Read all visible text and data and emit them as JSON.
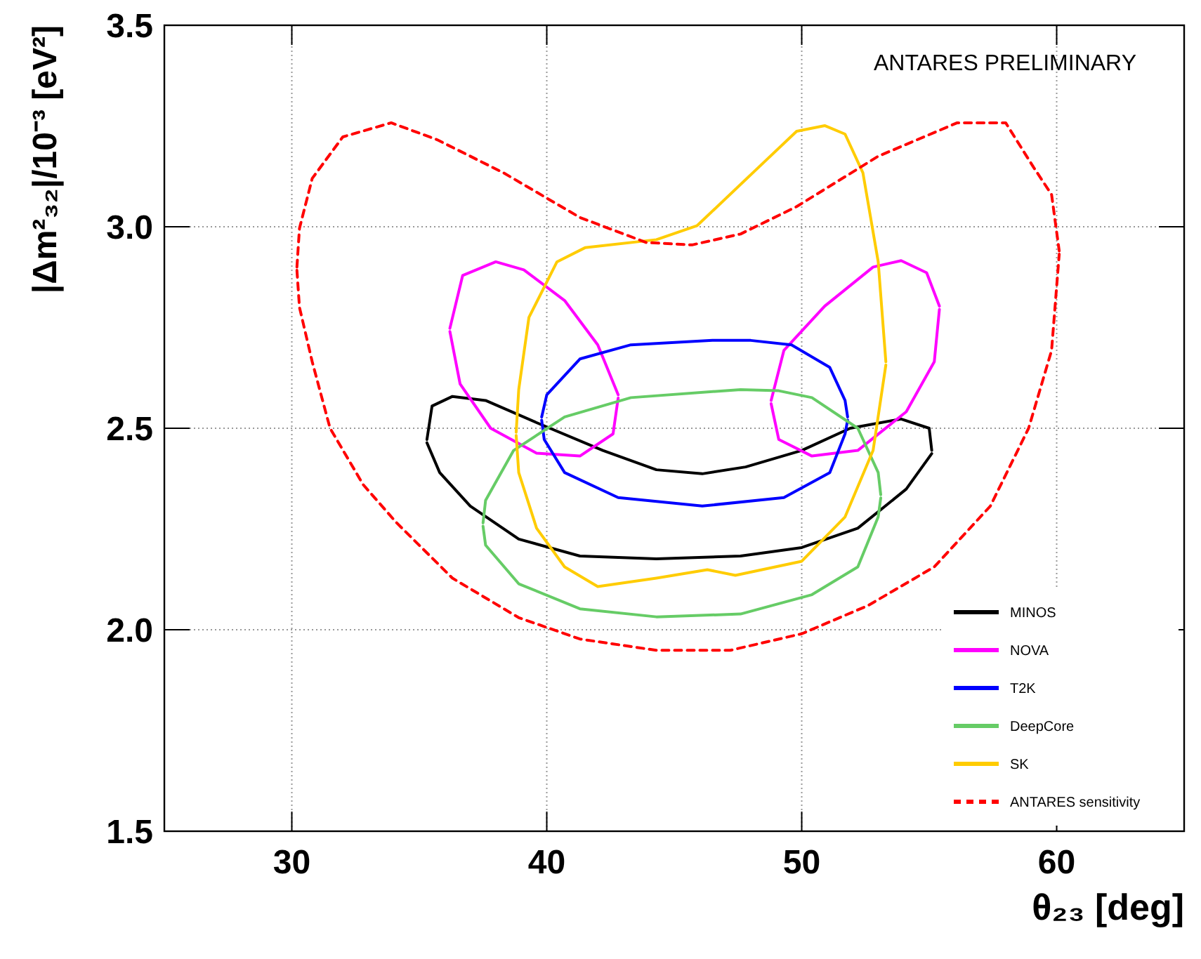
{
  "chart_data": {
    "type": "line",
    "xlabel": "θ₂₃ [deg]",
    "ylabel": "|Δm²₃₂|/10⁻³ [eV²]",
    "annotations": [
      "ANTARES PRELIMINARY"
    ],
    "xlim": [
      25,
      65
    ],
    "xticks": [
      30,
      40,
      50,
      60
    ],
    "ylim": [
      1.5,
      3.5
    ],
    "yticks": [
      1.5,
      {
        "value": 2,
        "label": "2.0"
      },
      2.5,
      {
        "value": 3,
        "label": "3.0"
      },
      3.5
    ],
    "grid": true,
    "legend": "bottom right",
    "series": [
      {
        "name": "MINOS",
        "color": "#000000",
        "line_style": "solid",
        "x": [
          35.3,
          35.5,
          36.3,
          37.6,
          39.6,
          42.2,
          44.3,
          46.1,
          47.8,
          50.0,
          51.9,
          53.9,
          55.0,
          55.1
        ],
        "values": [
          2.472,
          2.555,
          2.579,
          2.569,
          2.514,
          2.445,
          2.397,
          2.387,
          2.404,
          2.445,
          2.5,
          2.523,
          2.5,
          2.445
        ]
      },
      {
        "color": "#000000",
        "line_style": "solid",
        "x": [
          35.3,
          35.8,
          37.0,
          38.9,
          41.3,
          44.3,
          47.6,
          50.0,
          52.2,
          54.1,
          55.1
        ],
        "values": [
          2.464,
          2.39,
          2.307,
          2.225,
          2.183,
          2.176,
          2.183,
          2.204,
          2.252,
          2.349,
          2.437
        ]
      },
      {
        "name": "NOVA",
        "color": "#ff00ff",
        "line_style": "solid",
        "x": [
          36.2,
          36.7,
          38.0,
          39.1,
          40.7,
          42.0,
          42.8
        ],
        "values": [
          2.748,
          2.879,
          2.913,
          2.893,
          2.817,
          2.707,
          2.583
        ]
      },
      {
        "color": "#ff00ff",
        "line_style": "solid",
        "x": [
          36.2,
          36.6,
          37.8,
          39.6,
          41.3,
          42.6,
          42.8
        ],
        "values": [
          2.74,
          2.61,
          2.5,
          2.438,
          2.431,
          2.486,
          2.575
        ]
      },
      {
        "color": "#ff00ff",
        "line_style": "solid",
        "x": [
          48.8,
          49.3,
          50.9,
          52.8,
          53.9,
          54.9,
          55.4
        ],
        "values": [
          2.569,
          2.693,
          2.803,
          2.9,
          2.916,
          2.886,
          2.803
        ]
      },
      {
        "color": "#ff00ff",
        "line_style": "solid",
        "x": [
          48.8,
          49.1,
          50.4,
          52.2,
          54.1,
          55.2,
          55.4
        ],
        "values": [
          2.561,
          2.472,
          2.431,
          2.445,
          2.541,
          2.665,
          2.795
        ]
      },
      {
        "name": "T2K",
        "color": "#0000ff",
        "line_style": "solid",
        "x": [
          39.8,
          40.0,
          41.3,
          43.3,
          46.5,
          48.0,
          49.6,
          51.1,
          51.7,
          51.8
        ],
        "values": [
          2.528,
          2.583,
          2.672,
          2.707,
          2.718,
          2.718,
          2.707,
          2.651,
          2.569,
          2.528
        ]
      },
      {
        "color": "#0000ff",
        "line_style": "solid",
        "x": [
          39.8,
          39.9,
          40.7,
          42.8,
          46.1,
          49.3,
          51.1,
          51.7,
          51.8
        ],
        "values": [
          2.52,
          2.472,
          2.39,
          2.328,
          2.307,
          2.328,
          2.39,
          2.486,
          2.52
        ]
      },
      {
        "name": "DeepCore",
        "color": "#66cc66",
        "line_style": "solid",
        "x": [
          37.5,
          37.6,
          38.7,
          40.7,
          43.3,
          47.6,
          49.1,
          50.4,
          52.2,
          53.0,
          53.1
        ],
        "values": [
          2.265,
          2.321,
          2.445,
          2.528,
          2.576,
          2.596,
          2.593,
          2.576,
          2.5,
          2.39,
          2.335
        ]
      },
      {
        "color": "#66cc66",
        "line_style": "solid",
        "x": [
          37.5,
          37.6,
          38.9,
          41.3,
          44.3,
          47.6,
          50.4,
          52.2,
          53.0,
          53.1
        ],
        "values": [
          2.257,
          2.21,
          2.114,
          2.052,
          2.032,
          2.039,
          2.087,
          2.156,
          2.28,
          2.327
        ]
      },
      {
        "name": "SK",
        "color": "#ffcc00",
        "line_style": "solid",
        "x": [
          38.8,
          38.9,
          39.3,
          40.4,
          41.5,
          44.3,
          45.9,
          48.3,
          49.8,
          50.9,
          51.7,
          52.4,
          53.0,
          53.3
        ],
        "values": [
          2.49,
          2.596,
          2.775,
          2.913,
          2.948,
          2.968,
          3.003,
          3.147,
          3.237,
          3.251,
          3.23,
          3.134,
          2.913,
          2.665
        ]
      },
      {
        "color": "#ffcc00",
        "line_style": "solid",
        "x": [
          38.8,
          38.9,
          39.6,
          40.7,
          42.0,
          44.3,
          46.3,
          47.4,
          50.0,
          51.7,
          52.8,
          53.3
        ],
        "values": [
          2.482,
          2.39,
          2.252,
          2.156,
          2.107,
          2.128,
          2.149,
          2.135,
          2.17,
          2.28,
          2.445,
          2.657
        ]
      },
      {
        "name": "ANTARES sensitivity",
        "color": "#ff0000",
        "line_style": "dashed",
        "x": [
          30.2,
          30.3,
          30.8,
          32.0,
          33.9,
          35.7,
          38.3,
          41.3,
          43.9,
          45.7,
          47.6,
          49.8,
          53.0,
          56.1,
          58.0,
          59.1,
          59.8,
          60.1
        ],
        "values": [
          2.9,
          2.996,
          3.12,
          3.223,
          3.258,
          3.216,
          3.134,
          3.023,
          2.961,
          2.955,
          2.982,
          3.05,
          3.175,
          3.258,
          3.258,
          3.147,
          3.08,
          2.94
        ]
      },
      {
        "color": "#ff0000",
        "line_style": "dashed",
        "x": [
          30.2,
          30.3,
          30.8,
          31.5,
          32.8,
          34.1,
          36.3,
          38.9,
          41.3,
          44.3,
          47.2,
          50.0,
          52.6,
          55.2,
          57.4,
          58.9,
          59.8,
          60.1
        ],
        "values": [
          2.892,
          2.8,
          2.665,
          2.5,
          2.36,
          2.266,
          2.128,
          2.03,
          1.977,
          1.949,
          1.949,
          1.99,
          2.06,
          2.156,
          2.307,
          2.5,
          2.693,
          2.932
        ]
      }
    ]
  }
}
